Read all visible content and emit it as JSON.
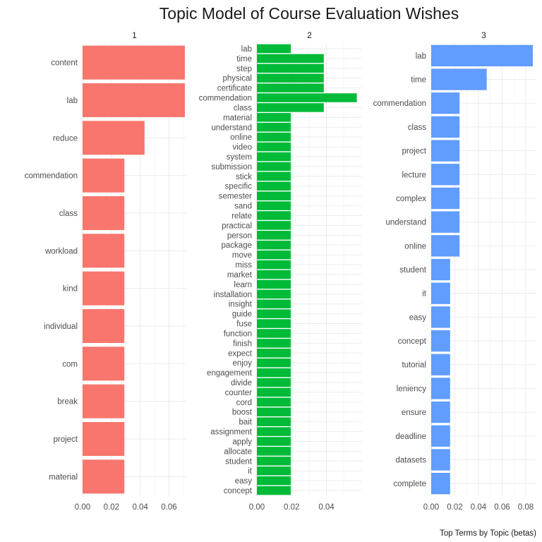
{
  "chart_data": {
    "type": "bar",
    "orientation": "horizontal",
    "title": "Topic Model of Course Evaluation Wishes",
    "caption": "Top Terms by Topic (betas)",
    "facets": [
      {
        "label": "1",
        "color": "#F8766D",
        "xlim": [
          0,
          0.072
        ],
        "ticks": [
          0.0,
          0.02,
          0.04,
          0.06
        ],
        "tick_labels": [
          "0.00",
          "0.02",
          "0.04",
          "0.06"
        ],
        "terms": [
          "content",
          "lab",
          "reduce",
          "commendation",
          "class",
          "workload",
          "kind",
          "individual",
          "com",
          "break",
          "project",
          "material"
        ],
        "values": [
          0.071,
          0.071,
          0.043,
          0.029,
          0.029,
          0.029,
          0.029,
          0.029,
          0.029,
          0.029,
          0.029,
          0.029
        ]
      },
      {
        "label": "2",
        "color": "#00BA38",
        "xlim": [
          0,
          0.0605
        ],
        "ticks": [
          0.0,
          0.02,
          0.04
        ],
        "tick_labels": [
          "0.00",
          "0.02",
          "0.04"
        ],
        "terms": [
          "lab",
          "time",
          "step",
          "physical",
          "certificate",
          "commendation",
          "class",
          "material",
          "understand",
          "online",
          "video",
          "system",
          "submission",
          "stick",
          "specific",
          "semester",
          "sand",
          "relate",
          "practical",
          "person",
          "package",
          "move",
          "miss",
          "market",
          "learn",
          "installation",
          "insight",
          "guide",
          "fuse",
          "function",
          "finish",
          "expect",
          "enjoy",
          "engagement",
          "divide",
          "counter",
          "cord",
          "boost",
          "bait",
          "assignment",
          "apply",
          "allocate",
          "student",
          "it",
          "easy",
          "concept"
        ],
        "values": [
          0.0195,
          0.0385,
          0.0385,
          0.0385,
          0.0385,
          0.0575,
          0.0385,
          0.0195,
          0.0195,
          0.0195,
          0.0195,
          0.0195,
          0.0195,
          0.0195,
          0.0195,
          0.0195,
          0.0195,
          0.0195,
          0.0195,
          0.0195,
          0.0195,
          0.0195,
          0.0195,
          0.0195,
          0.0195,
          0.0195,
          0.0195,
          0.0195,
          0.0195,
          0.0195,
          0.0195,
          0.0195,
          0.0195,
          0.0195,
          0.0195,
          0.0195,
          0.0195,
          0.0195,
          0.0195,
          0.0195,
          0.0195,
          0.0195,
          0.0195,
          0.0195,
          0.0195,
          0.0195
        ]
      },
      {
        "label": "3",
        "color": "#619CFF",
        "xlim": [
          0,
          0.089
        ],
        "ticks": [
          0.0,
          0.02,
          0.04,
          0.06,
          0.08
        ],
        "tick_labels": [
          "0.00",
          "0.02",
          "0.04",
          "0.06",
          "0.08"
        ],
        "terms": [
          "lab",
          "time",
          "commendation",
          "class",
          "project",
          "lecture",
          "complex",
          "understand",
          "online",
          "student",
          "it",
          "easy",
          "concept",
          "tutorial",
          "leniency",
          "ensure",
          "deadline",
          "datasets",
          "complete"
        ],
        "values": [
          0.086,
          0.047,
          0.024,
          0.024,
          0.024,
          0.024,
          0.024,
          0.024,
          0.024,
          0.016,
          0.016,
          0.016,
          0.016,
          0.016,
          0.016,
          0.016,
          0.016,
          0.016,
          0.016
        ]
      }
    ],
    "grid": true,
    "legend": "none"
  }
}
